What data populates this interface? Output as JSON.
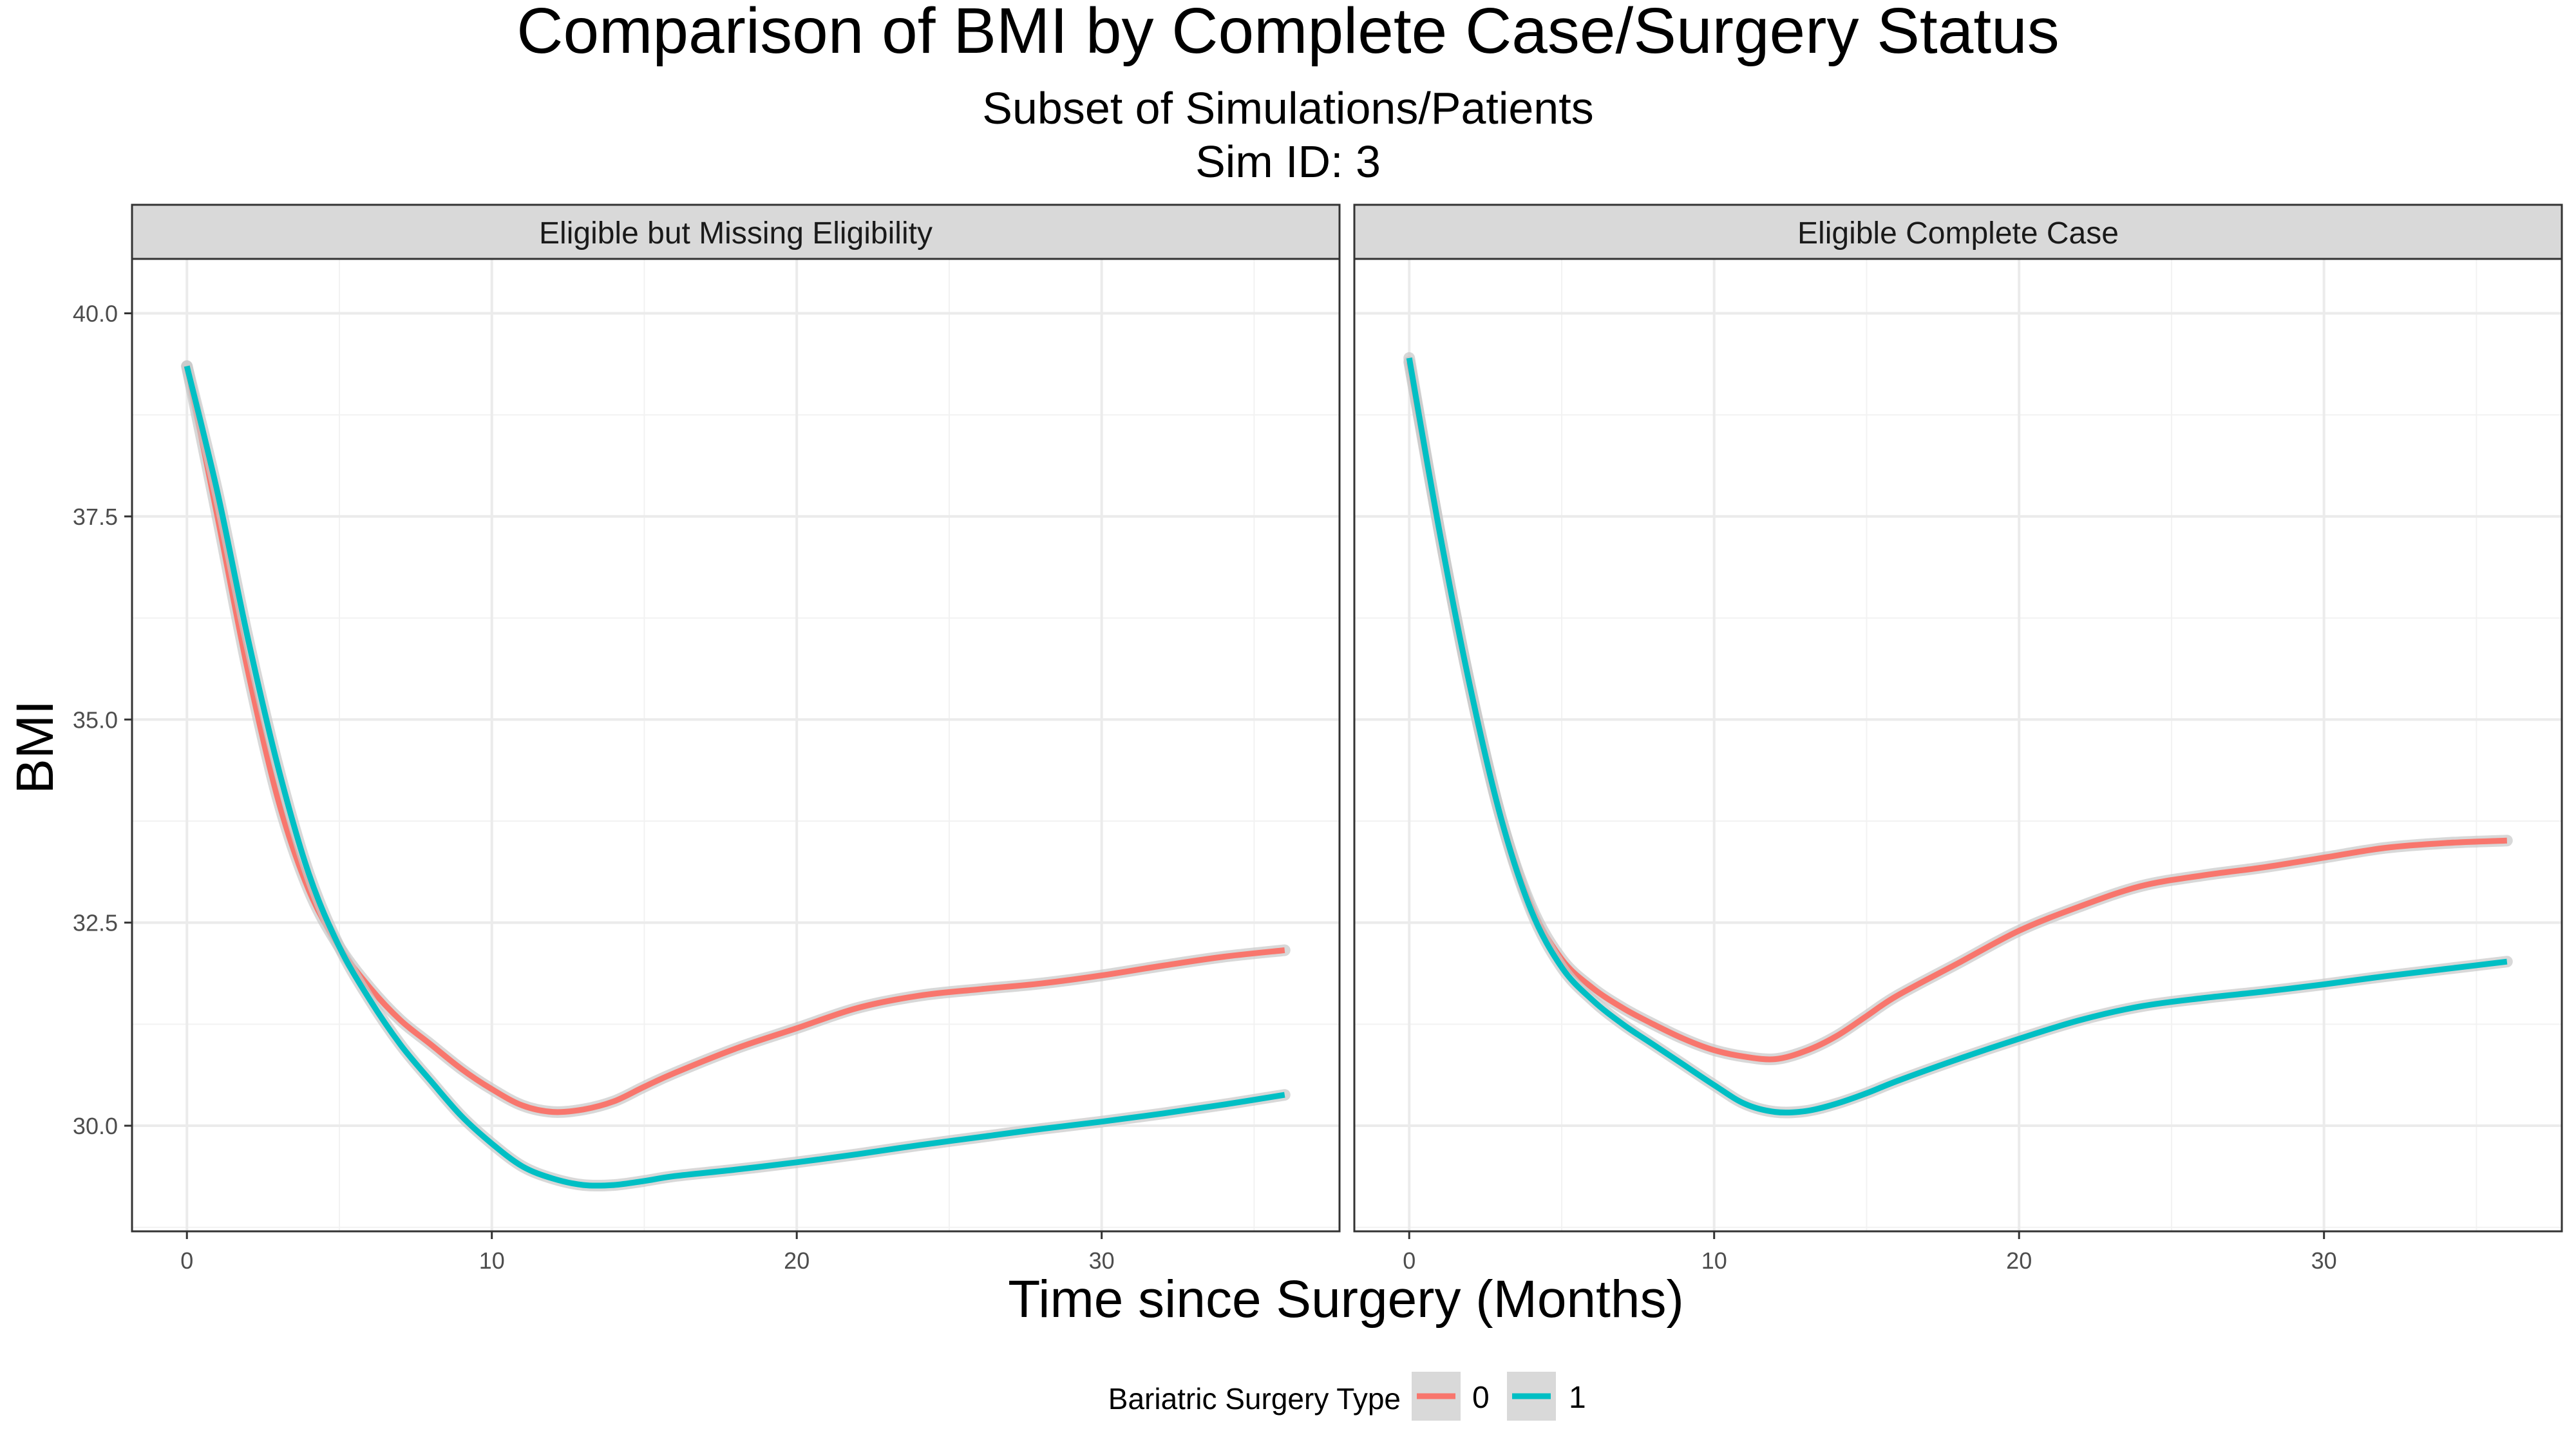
{
  "chart_data": {
    "type": "line",
    "title": "Comparison of BMI by Complete Case/Surgery Status",
    "subtitle_lines": [
      "Subset of Simulations/Patients",
      "Sim ID: 3"
    ],
    "xlabel": "Time since Surgery (Months)",
    "ylabel": "BMI",
    "xlim": [
      -1.8,
      37.8
    ],
    "ylim": [
      28.7,
      40.67
    ],
    "x_ticks": [
      0,
      10,
      20,
      30
    ],
    "x_tick_labels": [
      "0",
      "10",
      "20",
      "30"
    ],
    "y_ticks": [
      30,
      32.5,
      35,
      37.5,
      40
    ],
    "y_tick_labels": [
      "30.0",
      "32.5",
      "35.0",
      "37.5",
      "40.0"
    ],
    "grid": true,
    "legend": {
      "title": "Bariatric Surgery Type",
      "position": "bottom",
      "entries": [
        {
          "label": "0",
          "color": "#F8766D"
        },
        {
          "label": "1",
          "color": "#00BFC4"
        }
      ]
    },
    "panels": [
      {
        "strip": "Eligible but Missing Eligibility",
        "series": [
          {
            "name": "0",
            "color": "#F8766D",
            "x": [
              0,
              1,
              2,
              3,
              4,
              5,
              6,
              7,
              8,
              9,
              10,
              11,
              12,
              13,
              14,
              15,
              16,
              18,
              20,
              22,
              24,
              26,
              28,
              30,
              32,
              34,
              36
            ],
            "y": [
              39.35,
              37.5,
              35.6,
              34.0,
              32.9,
              32.2,
              31.7,
              31.3,
              31.0,
              30.7,
              30.45,
              30.25,
              30.17,
              30.2,
              30.3,
              30.48,
              30.65,
              30.95,
              31.2,
              31.45,
              31.6,
              31.68,
              31.75,
              31.85,
              31.97,
              32.08,
              32.16
            ]
          },
          {
            "name": "1",
            "color": "#00BFC4",
            "x": [
              0,
              1,
              2,
              3,
              4,
              5,
              6,
              7,
              8,
              9,
              10,
              11,
              12,
              13,
              14,
              15,
              16,
              18,
              20,
              22,
              24,
              26,
              28,
              30,
              32,
              34,
              36
            ],
            "y": [
              39.35,
              37.8,
              36.0,
              34.4,
              33.1,
              32.2,
              31.55,
              31.0,
              30.55,
              30.12,
              29.78,
              29.5,
              29.35,
              29.27,
              29.27,
              29.32,
              29.38,
              29.46,
              29.55,
              29.65,
              29.76,
              29.86,
              29.96,
              30.05,
              30.15,
              30.26,
              30.38
            ]
          }
        ]
      },
      {
        "strip": "Eligible Complete Case",
        "series": [
          {
            "name": "0",
            "color": "#F8766D",
            "x": [
              0,
              1,
              2,
              3,
              4,
              5,
              6,
              7,
              8,
              9,
              10,
              11,
              12,
              13,
              14,
              15,
              16,
              18,
              20,
              22,
              24,
              26,
              28,
              30,
              32,
              34,
              36
            ],
            "y": [
              39.4,
              37.3,
              35.4,
              33.8,
              32.7,
              32.05,
              31.7,
              31.45,
              31.25,
              31.07,
              30.93,
              30.85,
              30.82,
              30.92,
              31.1,
              31.35,
              31.6,
              32.0,
              32.4,
              32.7,
              32.95,
              33.08,
              33.18,
              33.3,
              33.42,
              33.48,
              33.51
            ]
          },
          {
            "name": "1",
            "color": "#00BFC4",
            "x": [
              0,
              1,
              2,
              3,
              4,
              5,
              6,
              7,
              8,
              9,
              10,
              11,
              12,
              13,
              14,
              15,
              16,
              18,
              20,
              22,
              24,
              26,
              28,
              30,
              32,
              34,
              36
            ],
            "y": [
              39.45,
              37.3,
              35.4,
              33.8,
              32.65,
              31.95,
              31.55,
              31.25,
              31.0,
              30.75,
              30.5,
              30.27,
              30.17,
              30.18,
              30.27,
              30.4,
              30.55,
              30.82,
              31.07,
              31.3,
              31.47,
              31.57,
              31.65,
              31.74,
              31.84,
              31.93,
              32.02
            ]
          }
        ]
      }
    ]
  }
}
